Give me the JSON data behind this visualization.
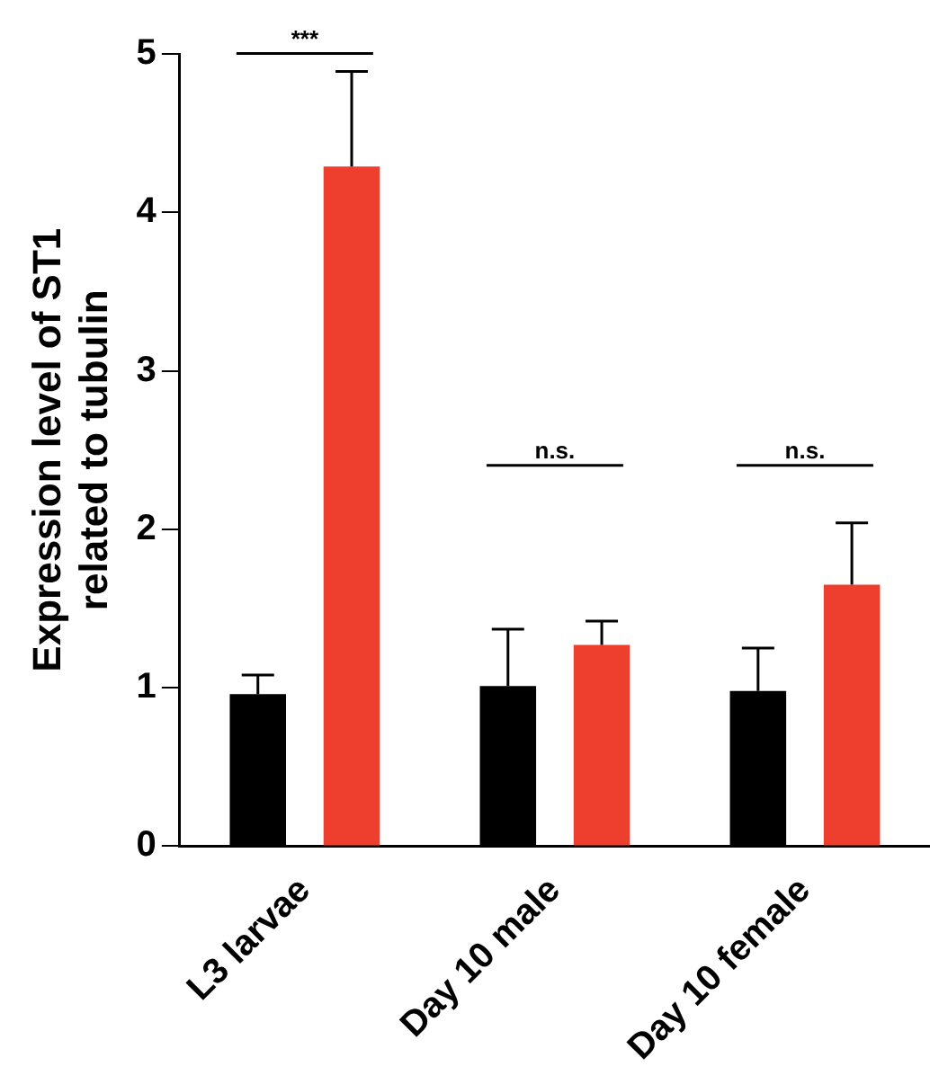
{
  "chart_data": {
    "type": "bar",
    "ylabel": "Expression level of ST1\nrelated to tubulin",
    "categories": [
      "L3 larvae",
      "Day 10 male",
      "Day 10 female"
    ],
    "series": [
      {
        "color": "#000000",
        "values": [
          0.96,
          1.01,
          0.98
        ],
        "errors": [
          0.12,
          0.36,
          0.27
        ]
      },
      {
        "color": "#ee3e2d",
        "values": [
          4.29,
          1.27,
          1.65
        ],
        "errors": [
          0.6,
          0.15,
          0.39
        ]
      }
    ],
    "ylim": [
      0,
      5
    ],
    "yticks": [
      0,
      1,
      2,
      3,
      4,
      5
    ],
    "grid": false,
    "legend": false,
    "annotations": [
      "***",
      "n.s.",
      "n.s."
    ]
  }
}
